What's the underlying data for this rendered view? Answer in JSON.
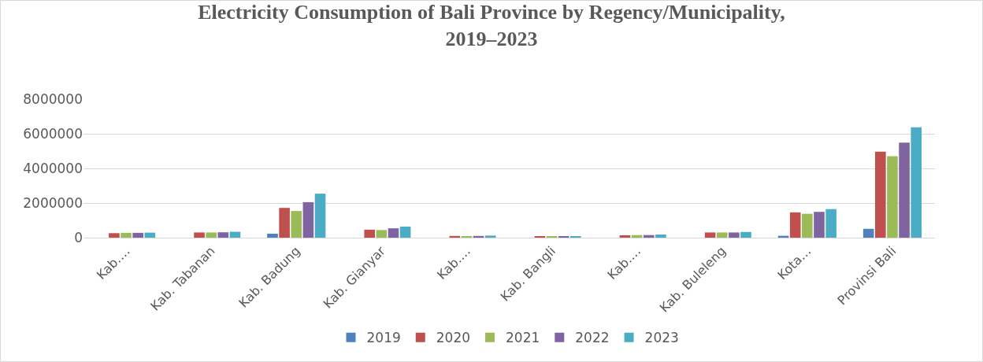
{
  "chart_data": {
    "type": "bar",
    "title": "Electricity Consumption of Bali Province by Regency/Municipality,\n2019–2023",
    "categories": [
      "Kab.…",
      "Kab. Tabanan",
      "Kab. Badung",
      "Kab. Gianyar",
      "Kab.…",
      "Kab. Bangli",
      "Kab.…",
      "Kab. Buleleng",
      "Kota…",
      "Provinsi Bali"
    ],
    "series": [
      {
        "name": "2019",
        "color": "#4f81bd",
        "values": [
          0,
          0,
          230000,
          0,
          0,
          0,
          0,
          0,
          110000,
          510000
        ]
      },
      {
        "name": "2020",
        "color": "#c0504d",
        "values": [
          260000,
          300000,
          1720000,
          460000,
          100000,
          50000,
          140000,
          300000,
          1460000,
          4970000
        ]
      },
      {
        "name": "2021",
        "color": "#9bbb59",
        "values": [
          280000,
          300000,
          1540000,
          440000,
          80000,
          50000,
          150000,
          300000,
          1380000,
          4700000
        ]
      },
      {
        "name": "2022",
        "color": "#8064a2",
        "values": [
          280000,
          310000,
          2050000,
          540000,
          100000,
          50000,
          150000,
          300000,
          1490000,
          5490000
        ]
      },
      {
        "name": "2023",
        "color": "#4bacc6",
        "values": [
          290000,
          340000,
          2540000,
          640000,
          120000,
          50000,
          180000,
          330000,
          1650000,
          6380000
        ]
      }
    ],
    "ylim": [
      0,
      8000000
    ],
    "yticks": [
      0,
      2000000,
      4000000,
      6000000,
      8000000
    ],
    "grid": "y",
    "legend": "bottom"
  }
}
